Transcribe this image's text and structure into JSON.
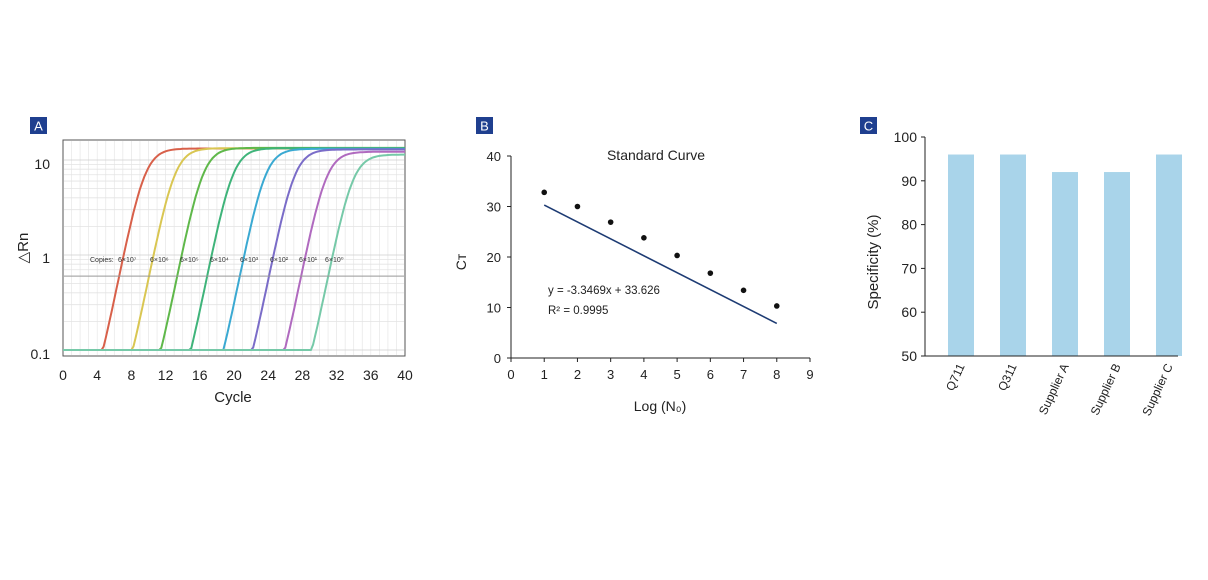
{
  "chart_data": [
    {
      "panel": "A",
      "type": "line",
      "title": "",
      "xlabel": "Cycle",
      "ylabel": "△Rn",
      "y_scale": "log",
      "xlim": [
        0,
        40
      ],
      "ylim": [
        0.1,
        14
      ],
      "x_ticks": [
        "0",
        "4",
        "8",
        "12",
        "16",
        "20",
        "24",
        "28",
        "32",
        "36",
        "40"
      ],
      "y_ticks": [
        "0.1",
        "1",
        "10"
      ],
      "threshold": 0.6,
      "annotation": "Copies:",
      "series": [
        {
          "name": "6×10⁷",
          "midpoint": 9.5,
          "plateau": 13.2,
          "color": "#d8604a"
        },
        {
          "name": "6×10⁶",
          "midpoint": 13.0,
          "plateau": 13.3,
          "color": "#d9c652"
        },
        {
          "name": "6×10⁵",
          "midpoint": 16.3,
          "plateau": 13.4,
          "color": "#5fb84a"
        },
        {
          "name": "6×10⁴",
          "midpoint": 19.8,
          "plateau": 13.3,
          "color": "#3fb47a"
        },
        {
          "name": "6×10³",
          "midpoint": 23.6,
          "plateau": 13.1,
          "color": "#3aa9d2"
        },
        {
          "name": "6×10²",
          "midpoint": 27.0,
          "plateau": 12.9,
          "color": "#7a6cc8"
        },
        {
          "name": "6×10¹",
          "midpoint": 30.7,
          "plateau": 12.2,
          "color": "#b06abf"
        },
        {
          "name": "6×10⁰",
          "midpoint": 33.8,
          "plateau": 11.4,
          "color": "#76c9a8"
        }
      ]
    },
    {
      "panel": "B",
      "type": "scatter",
      "title": "Standard Curve",
      "xlabel": "Log (N₀)",
      "ylabel": "Cᴛ",
      "xlim": [
        0,
        9
      ],
      "ylim": [
        0,
        40
      ],
      "x_ticks": [
        "0",
        "1",
        "2",
        "3",
        "4",
        "5",
        "6",
        "7",
        "8",
        "9"
      ],
      "y_ticks": [
        "0",
        "10",
        "20",
        "30",
        "40"
      ],
      "x": [
        1,
        2,
        3,
        4,
        5,
        6,
        7,
        8
      ],
      "y": [
        32.8,
        30.0,
        26.9,
        23.8,
        20.3,
        16.8,
        13.4,
        10.3
      ],
      "fit": {
        "slope": -3.3469,
        "intercept": 33.626
      },
      "equation": "y = -3.3469x + 33.626",
      "r_squared": "R² = 0.9995"
    },
    {
      "panel": "C",
      "type": "bar",
      "title": "",
      "xlabel": "",
      "ylabel": "Specificity (%)",
      "ylim": [
        50,
        100
      ],
      "y_ticks": [
        "50",
        "60",
        "70",
        "80",
        "90",
        "100"
      ],
      "categories": [
        "Q711",
        "Q311",
        "Supplier A",
        "Supplier B",
        "Supplier C"
      ],
      "values": [
        96,
        96,
        92,
        92,
        96
      ],
      "color": "#a9d4ea"
    }
  ],
  "colors": {
    "badge": "#1f3f8f",
    "axis": "#222222",
    "fit_line": "#1d3b73",
    "grid": "#d9d9d9"
  }
}
